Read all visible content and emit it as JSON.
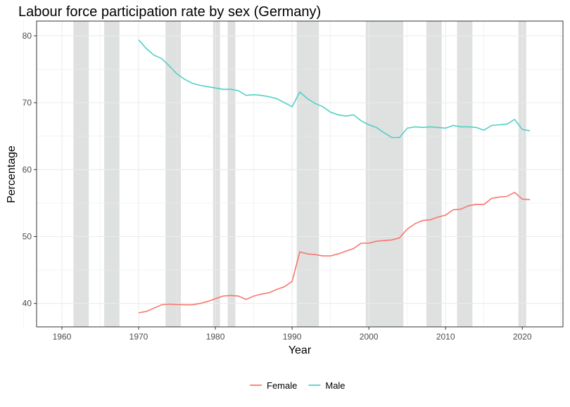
{
  "chart_data": {
    "type": "line",
    "title": "Labour force participation rate by sex (Germany)",
    "xlabel": "Year",
    "ylabel": "Percentage",
    "xlim": [
      1956.7,
      2025.3
    ],
    "ylim": [
      36.5,
      82.2
    ],
    "xticks": [
      1960,
      1970,
      1980,
      1990,
      2000,
      2010,
      2020
    ],
    "yticks": [
      40,
      50,
      60,
      70,
      80
    ],
    "grid": true,
    "legend_position": "bottom",
    "shaded_periods": [
      [
        1961.5,
        1963.5
      ],
      [
        1965.5,
        1967.5
      ],
      [
        1973.5,
        1975.5
      ],
      [
        1979.7,
        1980.6
      ],
      [
        1981.6,
        1982.6
      ],
      [
        1990.6,
        1993.5
      ],
      [
        1999.6,
        2004.5
      ],
      [
        2007.5,
        2009.5
      ],
      [
        2011.5,
        2013.5
      ],
      [
        2019.5,
        2020.5
      ]
    ],
    "shade_color": "#d9dbdb",
    "x": [
      1970,
      1971,
      1972,
      1973,
      1974,
      1975,
      1976,
      1977,
      1978,
      1979,
      1980,
      1981,
      1982,
      1983,
      1984,
      1985,
      1986,
      1987,
      1988,
      1989,
      1990,
      1991,
      1992,
      1993,
      1994,
      1995,
      1996,
      1997,
      1998,
      1999,
      2000,
      2001,
      2002,
      2003,
      2004,
      2005,
      2006,
      2007,
      2008,
      2009,
      2010,
      2011,
      2012,
      2013,
      2014,
      2015,
      2016,
      2017,
      2018,
      2019,
      2020,
      2021
    ],
    "series": [
      {
        "name": "Female",
        "color": "#f8766d",
        "values": [
          38.6,
          38.8,
          39.3,
          39.8,
          39.9,
          39.85,
          39.8,
          39.8,
          40.0,
          40.3,
          40.7,
          41.1,
          41.2,
          41.1,
          40.6,
          41.1,
          41.4,
          41.6,
          42.1,
          42.5,
          43.3,
          47.7,
          47.4,
          47.3,
          47.1,
          47.1,
          47.4,
          47.8,
          48.2,
          49.0,
          49.0,
          49.3,
          49.4,
          49.5,
          49.8,
          51.1,
          51.9,
          52.4,
          52.5,
          52.9,
          53.2,
          54.0,
          54.1,
          54.6,
          54.8,
          54.8,
          55.7,
          55.9,
          56.0,
          56.6,
          55.6,
          55.5
        ]
      },
      {
        "name": "Male",
        "color": "#4fd1c5",
        "values": [
          79.4,
          78.1,
          77.1,
          76.6,
          75.5,
          74.3,
          73.5,
          72.9,
          72.6,
          72.4,
          72.2,
          72.0,
          72.0,
          71.8,
          71.1,
          71.2,
          71.1,
          70.9,
          70.6,
          70.0,
          69.4,
          71.6,
          70.6,
          69.9,
          69.4,
          68.6,
          68.2,
          68.0,
          68.2,
          67.3,
          66.7,
          66.3,
          65.5,
          64.8,
          64.8,
          66.2,
          66.4,
          66.3,
          66.4,
          66.3,
          66.2,
          66.6,
          66.4,
          66.4,
          66.3,
          65.9,
          66.6,
          66.7,
          66.8,
          67.5,
          66.0,
          65.8
        ]
      }
    ]
  }
}
